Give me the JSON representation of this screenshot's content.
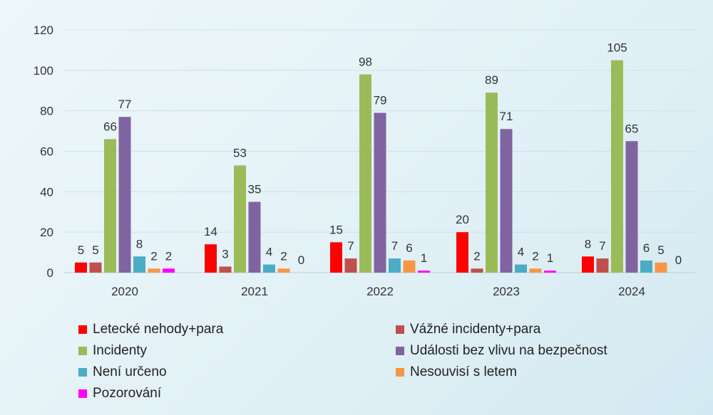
{
  "chart_data": {
    "type": "bar",
    "title": "",
    "xlabel": "",
    "ylabel": "",
    "ylim": [
      0,
      120
    ],
    "yticks": [
      0,
      20,
      40,
      60,
      80,
      100,
      120
    ],
    "grid": true,
    "legend_position": "bottom",
    "categories": [
      "2020",
      "2021",
      "2022",
      "2023",
      "2024"
    ],
    "series": [
      {
        "name": "Letecké nehody+para",
        "color": "#ff0000",
        "values": [
          5,
          14,
          15,
          20,
          8
        ],
        "labels": [
          "5",
          "14",
          "15",
          "20",
          "8"
        ]
      },
      {
        "name": "Vážné incidenty+para",
        "color": "#c0504d",
        "values": [
          5,
          3,
          7,
          2,
          7
        ],
        "labels": [
          "5",
          "3",
          "7",
          "2",
          "7"
        ]
      },
      {
        "name": "Incidenty",
        "color": "#9bbb59",
        "values": [
          66,
          53,
          98,
          89,
          105
        ],
        "labels": [
          "66",
          "53",
          "98",
          "89",
          "105"
        ]
      },
      {
        "name": "Události bez vlivu na bezpečnost",
        "color": "#8064a2",
        "values": [
          77,
          35,
          79,
          71,
          65
        ],
        "labels": [
          "77",
          "35",
          "79",
          "71",
          "65"
        ]
      },
      {
        "name": "Není určeno",
        "color": "#4bacc6",
        "values": [
          8,
          4,
          7,
          4,
          6
        ],
        "labels": [
          "8",
          "4",
          "7",
          "4",
          "6"
        ]
      },
      {
        "name": "Nesouvisí s letem",
        "color": "#f79646",
        "values": [
          2,
          2,
          6,
          2,
          5
        ],
        "labels": [
          "2",
          "2",
          "6",
          "2",
          "5"
        ]
      },
      {
        "name": "Pozorování",
        "color": "#ff00ff",
        "values": [
          2,
          0,
          1,
          1,
          0
        ],
        "labels": [
          "2",
          "",
          "1",
          "1",
          ""
        ]
      }
    ],
    "zero_labels": [
      {
        "category": "2021",
        "text": "0"
      },
      {
        "category": "2024",
        "text": "0"
      }
    ]
  }
}
